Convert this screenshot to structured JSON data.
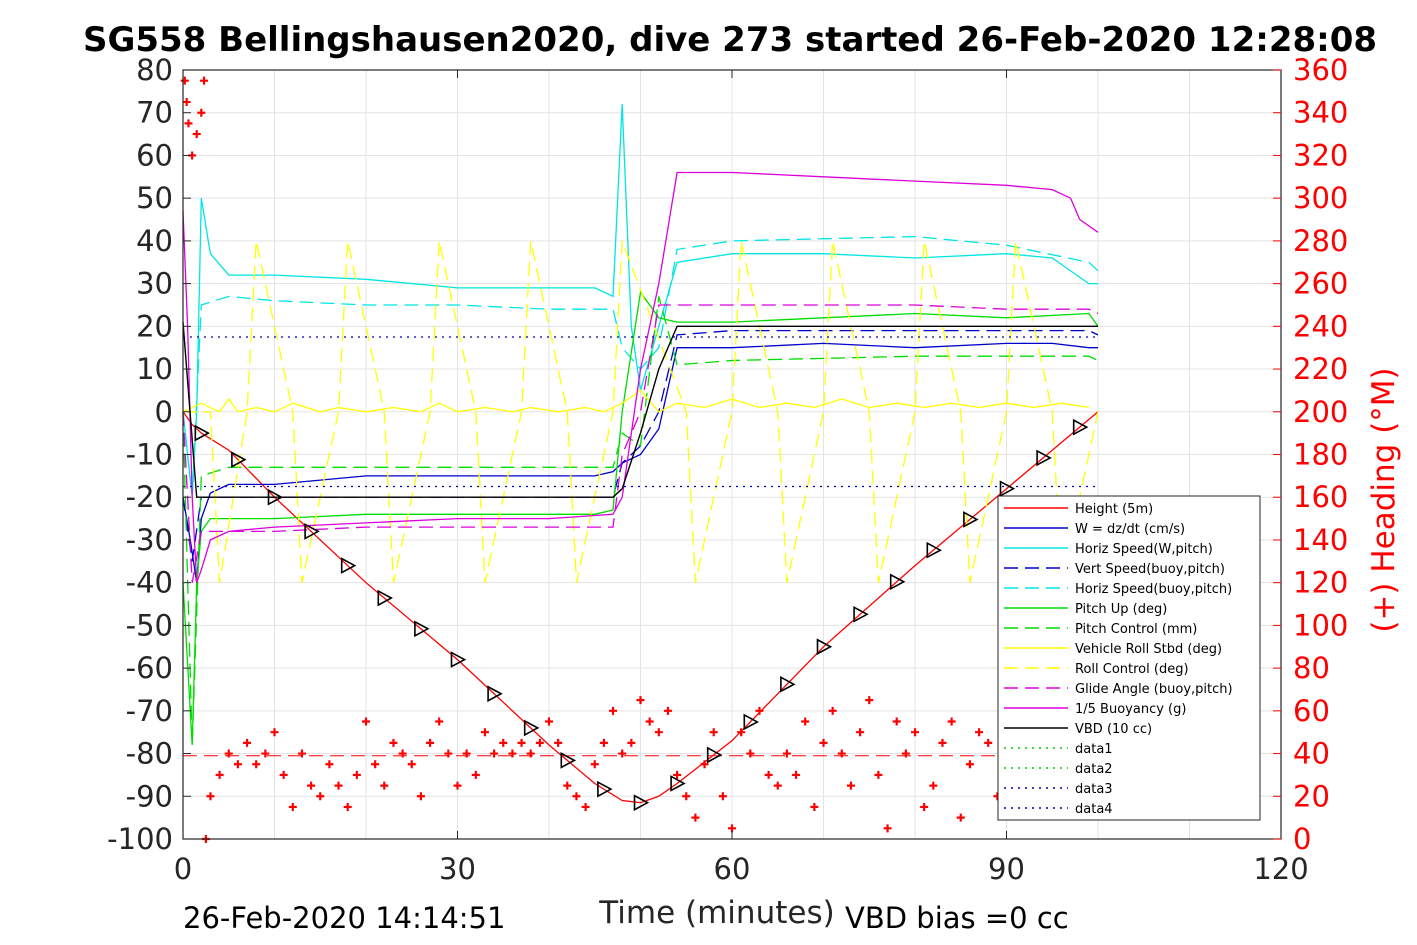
{
  "chart_data": {
    "type": "line",
    "title": "SG558 Bellingshausen2020, dive 273 started 26-Feb-2020 12:28:08",
    "xlabel": "Time (minutes)",
    "ylabel": "",
    "y2label": "(+) Heading (°M)",
    "xlim": [
      0,
      120
    ],
    "ylim": [
      -100,
      80
    ],
    "y2lim": [
      0,
      360
    ],
    "xticks": [
      "0",
      "30",
      "60",
      "90",
      "120"
    ],
    "yticks": [
      "80",
      "70",
      "60",
      "50",
      "40",
      "30",
      "20",
      "10",
      "0",
      "-10",
      "-20",
      "-30",
      "-40",
      "-50",
      "-60",
      "-70",
      "-80",
      "-90",
      "-100"
    ],
    "y2ticks": [
      "360",
      "340",
      "320",
      "300",
      "280",
      "260",
      "240",
      "220",
      "200",
      "180",
      "160",
      "140",
      "120",
      "100",
      "80",
      "60",
      "40",
      "20",
      "0"
    ],
    "grid": true,
    "legend_position": "lower-right",
    "footer_left": "26-Feb-2020 14:14:51",
    "footer_right": "VBD bias =0 cc",
    "colors": {
      "height": "#ff0000",
      "w": "#0000cc",
      "horiz_w": "#00e5e5",
      "vert_buoy": "#0000cc",
      "horiz_buoy": "#00e5e5",
      "pitch_up": "#00dd00",
      "pitch_ctrl": "#00dd00",
      "roll": "#ffff00",
      "roll_ctrl": "#ffff00",
      "glide": "#dd00dd",
      "buoy": "#dd00dd",
      "vbd": "#000000",
      "heading": "#ff0000"
    },
    "series": [
      {
        "id": "height",
        "name": "Height (5m)",
        "style": "solid",
        "x": [
          0,
          1,
          2,
          5,
          10,
          20,
          30,
          40,
          45,
          48,
          50,
          52,
          54,
          60,
          70,
          80,
          90,
          100
        ],
        "y": [
          0,
          -3,
          -5,
          -9,
          -20,
          -40,
          -58,
          -78,
          -87,
          -91,
          -91.5,
          -90,
          -87,
          -77,
          -55,
          -36,
          -18,
          0
        ]
      },
      {
        "id": "w",
        "name": "W = dz/dt (cm/s)",
        "style": "solid",
        "x": [
          0,
          0.8,
          1.5,
          2,
          3,
          5,
          10,
          20,
          30,
          40,
          45,
          47,
          48,
          50,
          52,
          54,
          60,
          70,
          80,
          90,
          95,
          99,
          100
        ],
        "y": [
          -20,
          -30,
          -40,
          -25,
          -19,
          -17,
          -17,
          -15,
          -15,
          -15,
          -15,
          -14,
          -12,
          -10,
          -4,
          15,
          15,
          16,
          15,
          16,
          16,
          15,
          15
        ]
      },
      {
        "id": "horiz_w",
        "name": "Horiz Speed(W,pitch)",
        "style": "solid",
        "x": [
          0,
          1,
          1.5,
          2,
          3,
          5,
          10,
          20,
          30,
          40,
          45,
          47,
          48,
          49,
          50,
          52,
          54,
          60,
          70,
          80,
          90,
          95,
          99,
          100
        ],
        "y": [
          0,
          -20,
          0,
          50,
          37,
          32,
          32,
          31,
          29,
          29,
          29,
          27,
          72,
          20,
          5,
          20,
          35,
          37,
          37,
          36,
          37,
          36,
          30,
          30
        ]
      },
      {
        "id": "vert_buoy",
        "name": "Vert Speed(buoy,pitch)",
        "style": "dashed",
        "x": [
          0,
          1,
          2,
          4,
          10,
          20,
          30,
          40,
          47,
          48,
          50,
          52,
          54,
          60,
          80,
          90,
          99,
          100
        ],
        "y": [
          -20,
          -35,
          -20,
          -20,
          -20,
          -20,
          -20,
          -20,
          -20,
          -12,
          -8,
          0,
          18,
          19,
          19,
          19,
          19,
          18
        ]
      },
      {
        "id": "horiz_buoy",
        "name": "Horiz Speed(buoy,pitch)",
        "style": "dashed",
        "x": [
          0,
          1,
          2,
          5,
          10,
          20,
          30,
          40,
          47,
          48,
          50,
          52,
          54,
          60,
          80,
          90,
          99,
          100
        ],
        "y": [
          0,
          -20,
          25,
          27,
          26,
          25,
          25,
          24,
          24,
          15,
          10,
          15,
          38,
          40,
          41,
          39,
          35,
          33
        ]
      },
      {
        "id": "pitch_up",
        "name": "Pitch Up (deg)",
        "style": "solid",
        "x": [
          0,
          1,
          1.5,
          2,
          3,
          5,
          10,
          20,
          30,
          40,
          45,
          47,
          48,
          50,
          52,
          54,
          60,
          70,
          80,
          90,
          99,
          100
        ],
        "y": [
          -40,
          -78,
          -40,
          -28,
          -25,
          -25,
          -25,
          -24,
          -24,
          -24,
          -24,
          -23,
          0,
          28,
          22,
          21,
          21,
          22,
          23,
          22,
          23,
          20
        ]
      },
      {
        "id": "pitch_ctrl",
        "name": "Pitch Control (mm)",
        "style": "dashed",
        "x": [
          0,
          1,
          2,
          5,
          10,
          20,
          30,
          40,
          47,
          48,
          50,
          52,
          54,
          60,
          80,
          90,
          99,
          100
        ],
        "y": [
          0,
          -78,
          -15,
          -13,
          -13,
          -13,
          -13,
          -13,
          -13,
          -5,
          -8,
          27,
          11,
          12,
          13,
          13,
          13,
          12
        ]
      },
      {
        "id": "roll",
        "name": "Vehicle Roll Stbd (deg)",
        "style": "solid",
        "x": [
          0,
          2,
          4,
          5,
          6,
          8,
          10,
          12,
          15,
          17,
          20,
          23,
          26,
          28,
          30,
          33,
          36,
          38,
          41,
          44,
          46,
          48,
          50,
          52,
          54,
          57,
          60,
          63,
          66,
          69,
          72,
          75,
          78,
          81,
          84,
          87,
          90,
          93,
          96,
          99
        ],
        "y": [
          0,
          2,
          0,
          3,
          0,
          1,
          0,
          2,
          0,
          1,
          0,
          1,
          0,
          2,
          0,
          1,
          0,
          1,
          0,
          1,
          0,
          2,
          5,
          0,
          2,
          1,
          3,
          1,
          2,
          1,
          3,
          1,
          2,
          1,
          2,
          1,
          2,
          1,
          2,
          1
        ]
      },
      {
        "id": "roll_ctrl",
        "name": "Roll Control (deg)",
        "style": "dashed",
        "x": [
          0,
          3,
          4,
          7,
          8,
          12,
          13,
          17,
          18,
          22,
          23,
          27,
          28,
          32,
          33,
          37,
          38,
          42,
          43,
          47,
          48,
          55,
          56,
          60,
          61,
          65,
          66,
          70,
          71,
          75,
          76,
          80,
          81,
          85,
          86,
          90,
          91,
          95,
          96,
          100
        ],
        "y": [
          0,
          0,
          -40,
          0,
          40,
          0,
          -40,
          0,
          40,
          0,
          -40,
          0,
          40,
          0,
          -40,
          0,
          40,
          0,
          -40,
          0,
          40,
          0,
          -40,
          0,
          40,
          0,
          -40,
          0,
          40,
          0,
          -40,
          0,
          40,
          0,
          -40,
          0,
          40,
          0,
          -40,
          0
        ]
      },
      {
        "id": "glide",
        "name": "Glide Angle (buoy,pitch)",
        "style": "dashed",
        "x": [
          0,
          1,
          2,
          5,
          10,
          20,
          30,
          40,
          47,
          48,
          50,
          52,
          54,
          60,
          80,
          90,
          99,
          100
        ],
        "y": [
          0,
          -40,
          -28,
          -28,
          -28,
          -27,
          -27,
          -27,
          -27,
          -10,
          0,
          25,
          25,
          25,
          25,
          24,
          24,
          23
        ]
      },
      {
        "id": "buoy",
        "name": "1/5 Buoyancy (g)",
        "style": "solid",
        "x": [
          0,
          0.5,
          1,
          1.5,
          2,
          3,
          5,
          10,
          20,
          30,
          40,
          47,
          48,
          50,
          52,
          54,
          60,
          70,
          80,
          90,
          95,
          97,
          98,
          100
        ],
        "y": [
          47,
          20,
          -20,
          -40,
          -37,
          -30,
          -28,
          -27,
          -26,
          -25,
          -25,
          -24,
          -20,
          10,
          30,
          56,
          56,
          55,
          54,
          53,
          52,
          50,
          45,
          42
        ]
      },
      {
        "id": "vbd",
        "name": "VBD (10 cc)",
        "style": "solid",
        "x": [
          0,
          1.5,
          2,
          45,
          47,
          48,
          50,
          52,
          54,
          60,
          90,
          100
        ],
        "y": [
          21,
          -20,
          -20,
          -20,
          -20,
          -18,
          -5,
          10,
          20,
          20,
          20,
          20
        ]
      },
      {
        "id": "data1",
        "name": "data1",
        "style": "dotted",
        "x": [],
        "y": []
      },
      {
        "id": "data2",
        "name": "data2",
        "style": "dotted",
        "x": [],
        "y": []
      },
      {
        "id": "data3",
        "name": "data3",
        "style": "dotted",
        "x": [
          0,
          100
        ],
        "y": [
          17.5,
          17.5
        ]
      },
      {
        "id": "data4",
        "name": "data4",
        "style": "dotted",
        "x": [
          0,
          100
        ],
        "y": [
          -17.5,
          -17.5
        ]
      }
    ],
    "heading": {
      "axis": "y2",
      "x": [
        0.2,
        0.4,
        0.6,
        1.0,
        1.5,
        2.0,
        2.3,
        2.5,
        3,
        4,
        5,
        6,
        7,
        8,
        9,
        10,
        11,
        12,
        13,
        14,
        15,
        16,
        17,
        18,
        19,
        20,
        21,
        22,
        23,
        24,
        25,
        26,
        27,
        28,
        29,
        30,
        31,
        32,
        33,
        34,
        35,
        36,
        37,
        38,
        39,
        40,
        41,
        42,
        43,
        44,
        45,
        46,
        47,
        48,
        49,
        50,
        51,
        52,
        53,
        54,
        55,
        56,
        57,
        58,
        59,
        60,
        61,
        62,
        63,
        64,
        65,
        66,
        67,
        68,
        69,
        70,
        71,
        72,
        73,
        74,
        75,
        76,
        77,
        78,
        79,
        80,
        81,
        82,
        83,
        84,
        85,
        86,
        87,
        88,
        89,
        90,
        91,
        92,
        93,
        94,
        95,
        96,
        97,
        98,
        99
      ],
      "y": [
        355,
        345,
        335,
        320,
        330,
        340,
        355,
        0,
        20,
        30,
        40,
        35,
        45,
        35,
        40,
        50,
        30,
        15,
        40,
        25,
        20,
        35,
        25,
        15,
        30,
        55,
        35,
        25,
        45,
        40,
        35,
        20,
        45,
        55,
        40,
        25,
        40,
        30,
        50,
        40,
        45,
        40,
        45,
        40,
        45,
        55,
        45,
        25,
        20,
        15,
        35,
        45,
        60,
        40,
        45,
        65,
        55,
        50,
        60,
        30,
        20,
        10,
        35,
        50,
        20,
        5,
        50,
        40,
        60,
        30,
        25,
        40,
        30,
        55,
        15,
        45,
        60,
        40,
        25,
        50,
        65,
        30,
        5,
        55,
        40,
        50,
        15,
        25,
        45,
        55,
        10,
        35,
        50,
        45,
        20,
        40,
        25,
        60,
        35,
        15,
        45,
        60,
        30,
        40,
        50
      ]
    },
    "heading_reference": {
      "axis": "y2",
      "value": 39
    }
  }
}
